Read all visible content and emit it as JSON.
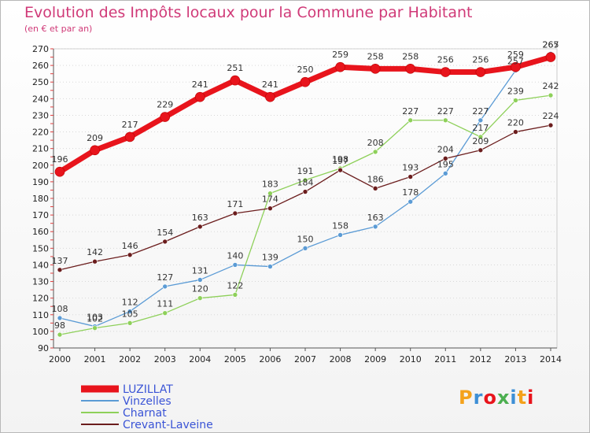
{
  "chart_data": {
    "type": "line",
    "title": "Evolution des Impôts locaux pour la Commune par Habitant",
    "subtitle": "(en € et par an)",
    "xlabel": "",
    "ylabel": "",
    "categories": [
      "2000",
      "2001",
      "2002",
      "2003",
      "2004",
      "2005",
      "2006",
      "2007",
      "2008",
      "2009",
      "2010",
      "2011",
      "2012",
      "2013",
      "2014"
    ],
    "ylim": [
      90,
      270
    ],
    "yticks": [
      90,
      100,
      110,
      120,
      130,
      140,
      150,
      160,
      170,
      180,
      190,
      200,
      210,
      220,
      230,
      240,
      250,
      260,
      270
    ],
    "legend_position": "bottom-left",
    "series": [
      {
        "name": "LUZILLAT",
        "color": "#e8141c",
        "values": [
          196,
          209,
          217,
          229,
          241,
          251,
          241,
          250,
          259,
          258,
          258,
          256,
          256,
          259,
          265
        ]
      },
      {
        "name": "Vinzelles",
        "color": "#5b9bd5",
        "values": [
          108,
          103,
          112,
          127,
          131,
          140,
          139,
          150,
          158,
          163,
          178,
          195,
          227,
          257,
          267
        ]
      },
      {
        "name": "Charnat",
        "color": "#8ed05a",
        "values": [
          98,
          102,
          105,
          111,
          120,
          122,
          183,
          191,
          198,
          208,
          227,
          227,
          217,
          239,
          242
        ]
      },
      {
        "name": "Crevant-Laveine",
        "color": "#6b1d1d",
        "values": [
          137,
          142,
          146,
          154,
          163,
          171,
          174,
          184,
          197,
          186,
          193,
          204,
          209,
          220,
          224
        ]
      }
    ],
    "data_labels": {
      "LUZILLAT": [
        "196",
        "209",
        "217",
        "229",
        "241",
        "251",
        "241",
        "250",
        "259",
        "258",
        "258",
        "256",
        "256",
        "259",
        "265"
      ],
      "Vinzelles": [
        "108",
        "103",
        "112",
        "127",
        "131",
        "140",
        "139",
        "150",
        "158",
        "163",
        "178",
        "195",
        "227",
        "257",
        "267"
      ],
      "Charnat": [
        "98",
        "102",
        "105",
        "111",
        "120",
        "122",
        "183",
        "191",
        "198",
        "208",
        "227",
        "227",
        "217",
        "239",
        "242"
      ],
      "Crevant-Laveine": [
        "137",
        "142",
        "146",
        "154",
        "163",
        "171",
        "174",
        "184",
        "197",
        "186",
        "193",
        "204",
        "209",
        "220",
        "224"
      ]
    }
  },
  "logo": {
    "text": "Proxiti",
    "colors": [
      "#f4a21c",
      "#3d8fd6",
      "#e8141c",
      "#4caf50",
      "#3d8fd6",
      "#f4a21c",
      "#e8141c"
    ]
  }
}
